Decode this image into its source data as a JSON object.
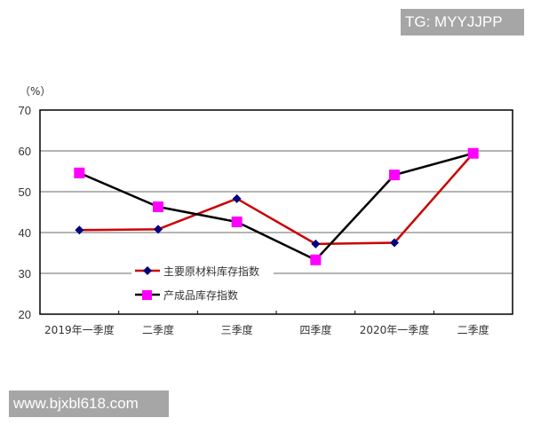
{
  "watermarks": {
    "top": "TG: MYYJJPP",
    "bottom": "www.bjxbl618.com"
  },
  "chart_data": {
    "type": "line",
    "title": "",
    "ylabel": "（%）",
    "xlabel": "",
    "ylim": [
      20,
      70
    ],
    "yticks": [
      20,
      30,
      40,
      50,
      60,
      70
    ],
    "grid": true,
    "legend_position": "inside-lower-left",
    "categories": [
      "2019年一季度",
      "二季度",
      "三季度",
      "四季度",
      "2020年一季度",
      "二季度"
    ],
    "series": [
      {
        "name": "主要原材料库存指数",
        "color": "#cc0000",
        "marker": "diamond",
        "marker_color": "#000080",
        "values": [
          40.6,
          40.8,
          48.3,
          37.2,
          37.5,
          59.4
        ]
      },
      {
        "name": "产成品库存指数",
        "color": "#000000",
        "marker": "square",
        "marker_color": "#ff00ff",
        "values": [
          54.6,
          46.3,
          42.6,
          33.3,
          54.1,
          59.4
        ]
      }
    ]
  }
}
